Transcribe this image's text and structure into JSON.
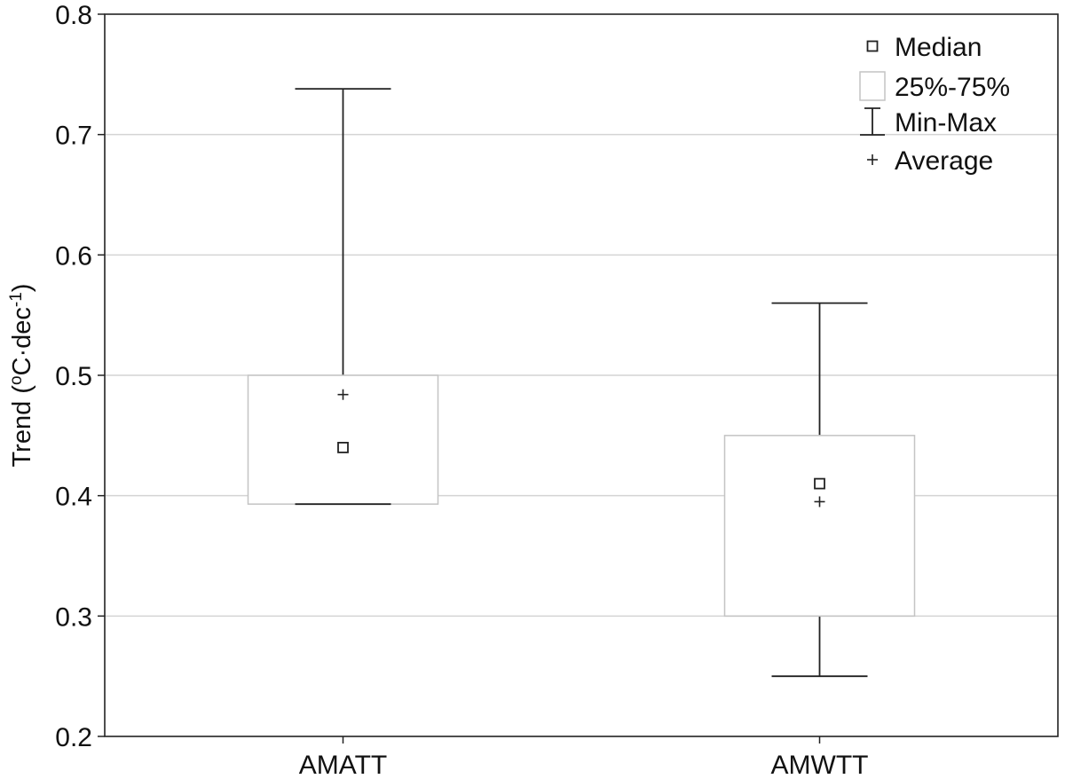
{
  "chart_data": {
    "type": "box",
    "title": "",
    "xlabel": "",
    "ylabel": {
      "prefix": "Trend (",
      "degree": "o",
      "unit": "C·dec",
      "exponent": "-1",
      "suffix": ")"
    },
    "ylim": [
      0.2,
      0.8
    ],
    "yticks": [
      "0.2",
      "0.3",
      "0.4",
      "0.5",
      "0.6",
      "0.7",
      "0.8"
    ],
    "grid": true,
    "legend_position": "top-right",
    "legend": [
      {
        "key": "median",
        "label": "Median",
        "marker": "square"
      },
      {
        "key": "iqr",
        "label": "25%-75%",
        "marker": "box"
      },
      {
        "key": "range",
        "label": "Min-Max",
        "marker": "whisker"
      },
      {
        "key": "mean",
        "label": "Average",
        "marker": "plus"
      }
    ],
    "categories": [
      "AMATT",
      "AMWTT"
    ],
    "boxes": [
      {
        "category": "AMATT",
        "min": 0.393,
        "q1": 0.393,
        "median": 0.44,
        "q3": 0.5,
        "max": 0.738,
        "mean": 0.484
      },
      {
        "category": "AMWTT",
        "min": 0.25,
        "q1": 0.3,
        "median": 0.41,
        "q3": 0.45,
        "max": 0.56,
        "mean": 0.395
      }
    ]
  }
}
